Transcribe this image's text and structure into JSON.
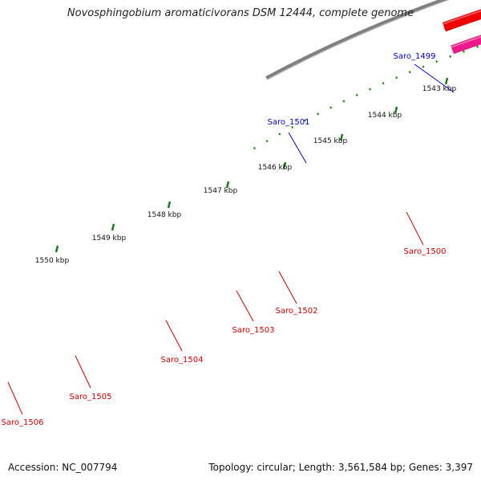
{
  "title": "Novosphingobium aromaticivorans DSM 12444, complete genome",
  "footer": {
    "accession": "Accession: NC_007794",
    "summary": "Topology: circular; Length: 3,561,584 bp; Genes: 3,397"
  },
  "colors": {
    "backbone": "#808080",
    "tick": "#1a7a1a",
    "tick_label": "#111111",
    "label_blue": "#0000cc",
    "label_red": "#cc0000"
  },
  "ticks": [
    {
      "label": "1543 kbp"
    },
    {
      "label": "1544 kbp"
    },
    {
      "label": "1545 kbp"
    },
    {
      "label": "1546 kbp"
    },
    {
      "label": "1547 kbp"
    },
    {
      "label": "1548 kbp"
    },
    {
      "label": "1549 kbp"
    },
    {
      "label": "1550 kbp"
    }
  ],
  "genes": [
    {
      "name": "Saro_1499",
      "color": "#33cc33",
      "label_color": "#0000cc"
    },
    {
      "name": "Saro_1500",
      "color": "#3f3f8f",
      "label_color": "#cc0000"
    },
    {
      "name": "Saro_1501",
      "color": "#ff8800",
      "label_color": "#0000cc"
    },
    {
      "name": "Saro_1502",
      "color": "#ee0000",
      "label_color": "#cc0000"
    },
    {
      "name": "Saro_1503",
      "color": "#00cccc",
      "label_color": "#cc0000"
    },
    {
      "name": "Saro_1504",
      "color": "#ee0000",
      "label_color": "#cc0000"
    },
    {
      "name": "Saro_1505",
      "color": "#ee0000",
      "label_color": "#cc0000"
    },
    {
      "name": "Saro_1506",
      "color": "#ee1a8a",
      "label_color": "#cc0000"
    }
  ]
}
